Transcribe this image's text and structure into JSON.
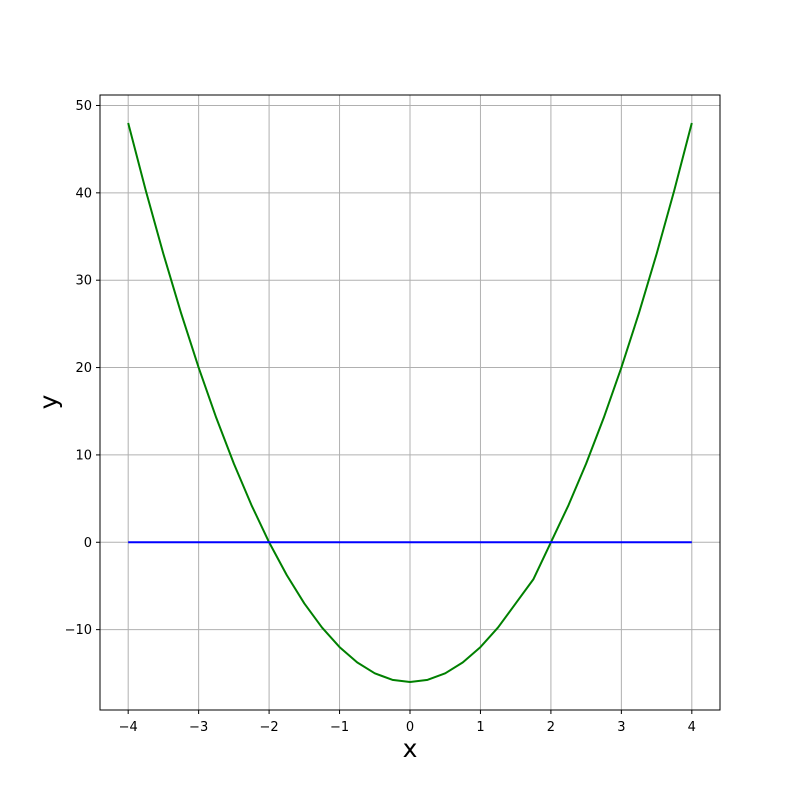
{
  "chart_data": {
    "type": "line",
    "title": "",
    "xlabel": "x",
    "ylabel": "y",
    "xlim": [
      -4.4,
      4.4
    ],
    "ylim": [
      -19.2,
      51.2
    ],
    "grid": true,
    "background": "#ffffff",
    "grid_color": "#b0b0b0",
    "spine_color": "#000000",
    "tick_color": "#000000",
    "xticks": {
      "values": [
        -4,
        -3,
        -2,
        -1,
        0,
        1,
        2,
        3,
        4
      ],
      "labels": [
        "−4",
        "−3",
        "−2",
        "−1",
        "0",
        "1",
        "2",
        "3",
        "4"
      ]
    },
    "yticks": {
      "values": [
        -10,
        0,
        10,
        20,
        30,
        40,
        50
      ],
      "labels": [
        "−10",
        "0",
        "10",
        "20",
        "30",
        "40",
        "50"
      ]
    },
    "series": [
      {
        "id": "parabola-curve",
        "color": "#008000",
        "line_width": 2,
        "x": [
          -4,
          -3.75,
          -3.5,
          -3.25,
          -3,
          -2.75,
          -2.5,
          -2.25,
          -2,
          -1.75,
          -1.5,
          -1.25,
          -1,
          -0.75,
          -0.5,
          -0.25,
          0,
          0.25,
          0.5,
          0.75,
          1,
          1.25,
          1.5,
          1.75,
          2,
          2.25,
          2.5,
          2.75,
          3,
          3.25,
          3.5,
          3.75,
          4
        ],
        "y": [
          48,
          40.25,
          33,
          26.25,
          20,
          14.25,
          9,
          4.25,
          0,
          -3.75,
          -7,
          -9.75,
          -12,
          -13.75,
          -15,
          -15.75,
          -16,
          -15.75,
          -15,
          -13.75,
          -12,
          -9.75,
          -7,
          -4.25,
          0,
          4.25,
          9,
          14.25,
          20,
          26.25,
          33,
          40.25,
          48
        ]
      },
      {
        "id": "zero-horizontal-line",
        "color": "#0000ff",
        "line_width": 2,
        "x": [
          -4,
          4
        ],
        "y": [
          0,
          0
        ]
      }
    ]
  }
}
